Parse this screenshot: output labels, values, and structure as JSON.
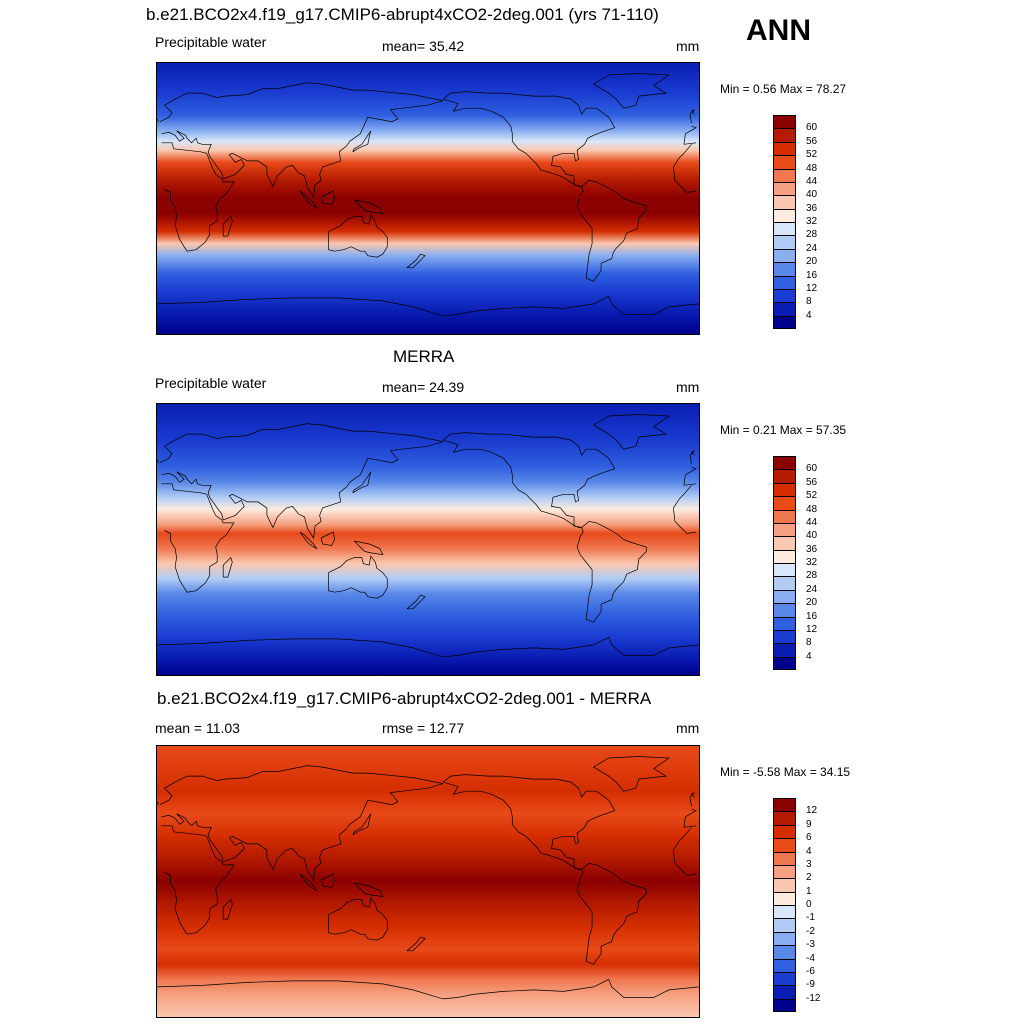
{
  "season": "ANN",
  "panels": [
    {
      "id": "model",
      "title": "b.e21.BCO2x4.f19_g17.CMIP6-abrupt4xCO2-2deg.001 (yrs 71-110)",
      "left_text": "Precipitable water",
      "center_text": "mean=  35.42",
      "units": "mm",
      "minmax": "Min =   0.56 Max =  78.27",
      "colorbar": {
        "labels": [
          "60",
          "56",
          "52",
          "48",
          "44",
          "40",
          "36",
          "32",
          "28",
          "24",
          "20",
          "16",
          "12",
          "8",
          "4"
        ],
        "colors": [
          "#8b0000",
          "#b31a00",
          "#d42e00",
          "#e84a1a",
          "#f07850",
          "#f5a080",
          "#fac8b0",
          "#fdebe0",
          "#d8e6fa",
          "#b0ccf5",
          "#88aef0",
          "#5a88e8",
          "#3060e0",
          "#1a3cd0",
          "#0a1eb4",
          "#00008c"
        ]
      },
      "field_stops": [
        {
          "lat": 90,
          "color": "#0a1eb4"
        },
        {
          "lat": 70,
          "color": "#1a3cd0"
        },
        {
          "lat": 55,
          "color": "#3060e0"
        },
        {
          "lat": 45,
          "color": "#88aef0"
        },
        {
          "lat": 38,
          "color": "#d8e6fa"
        },
        {
          "lat": 32,
          "color": "#fac8b0"
        },
        {
          "lat": 24,
          "color": "#e84a1a"
        },
        {
          "lat": 12,
          "color": "#b31a00"
        },
        {
          "lat": 0,
          "color": "#8b0000"
        },
        {
          "lat": -10,
          "color": "#8b0000"
        },
        {
          "lat": -22,
          "color": "#d42e00"
        },
        {
          "lat": -30,
          "color": "#fac8b0"
        },
        {
          "lat": -38,
          "color": "#88aef0"
        },
        {
          "lat": -50,
          "color": "#3060e0"
        },
        {
          "lat": -62,
          "color": "#1a3cd0"
        },
        {
          "lat": -75,
          "color": "#0a1eb4"
        },
        {
          "lat": -90,
          "color": "#00008c"
        }
      ]
    },
    {
      "id": "obs",
      "title": "MERRA",
      "left_text": "Precipitable water",
      "center_text": "mean=  24.39",
      "units": "mm",
      "minmax": "Min =   0.21 Max =  57.35",
      "colorbar": {
        "labels": [
          "60",
          "56",
          "52",
          "48",
          "44",
          "40",
          "36",
          "32",
          "28",
          "24",
          "20",
          "16",
          "12",
          "8",
          "4"
        ],
        "colors": [
          "#8b0000",
          "#b31a00",
          "#d42e00",
          "#e84a1a",
          "#f07850",
          "#f5a080",
          "#fac8b0",
          "#fdebe0",
          "#d8e6fa",
          "#b0ccf5",
          "#88aef0",
          "#5a88e8",
          "#3060e0",
          "#1a3cd0",
          "#0a1eb4",
          "#00008c"
        ]
      },
      "field_stops": [
        {
          "lat": 90,
          "color": "#0a1eb4"
        },
        {
          "lat": 65,
          "color": "#1a3cd0"
        },
        {
          "lat": 48,
          "color": "#3060e0"
        },
        {
          "lat": 38,
          "color": "#5a88e8"
        },
        {
          "lat": 28,
          "color": "#b0ccf5"
        },
        {
          "lat": 20,
          "color": "#fdebe0"
        },
        {
          "lat": 10,
          "color": "#f5a080"
        },
        {
          "lat": 4,
          "color": "#e84a1a"
        },
        {
          "lat": -6,
          "color": "#f07850"
        },
        {
          "lat": -16,
          "color": "#fac8b0"
        },
        {
          "lat": -26,
          "color": "#b0ccf5"
        },
        {
          "lat": -36,
          "color": "#5a88e8"
        },
        {
          "lat": -50,
          "color": "#3060e0"
        },
        {
          "lat": -65,
          "color": "#1a3cd0"
        },
        {
          "lat": -78,
          "color": "#0a1eb4"
        },
        {
          "lat": -90,
          "color": "#00008c"
        }
      ]
    },
    {
      "id": "diff",
      "title": "b.e21.BCO2x4.f19_g17.CMIP6-abrupt4xCO2-2deg.001 - MERRA",
      "left_text": "mean =  11.03",
      "center_text": "rmse =  12.77",
      "units": "mm",
      "minmax": "Min =  -5.58 Max =  34.15",
      "colorbar": {
        "labels": [
          "12",
          "9",
          "6",
          "4",
          "3",
          "2",
          "1",
          "0",
          "-1",
          "-2",
          "-3",
          "-4",
          "-6",
          "-9",
          "-12"
        ],
        "colors": [
          "#8b0000",
          "#b31a00",
          "#d42e00",
          "#e84a1a",
          "#f07850",
          "#f5a080",
          "#fac8b0",
          "#fdebe0",
          "#d8e6fa",
          "#b0ccf5",
          "#88aef0",
          "#5a88e8",
          "#3060e0",
          "#1a3cd0",
          "#0a1eb4",
          "#00008c"
        ]
      },
      "field_stops": [
        {
          "lat": 90,
          "color": "#e84a1a"
        },
        {
          "lat": 60,
          "color": "#d42e00"
        },
        {
          "lat": 45,
          "color": "#e84a1a"
        },
        {
          "lat": 30,
          "color": "#d42e00"
        },
        {
          "lat": 15,
          "color": "#b31a00"
        },
        {
          "lat": 0,
          "color": "#8b0000"
        },
        {
          "lat": -15,
          "color": "#b31a00"
        },
        {
          "lat": -30,
          "color": "#d42e00"
        },
        {
          "lat": -45,
          "color": "#e84a1a"
        },
        {
          "lat": -55,
          "color": "#d42e00"
        },
        {
          "lat": -65,
          "color": "#f07850"
        },
        {
          "lat": -75,
          "color": "#f5a080"
        },
        {
          "lat": -90,
          "color": "#fac8b0"
        }
      ]
    }
  ]
}
